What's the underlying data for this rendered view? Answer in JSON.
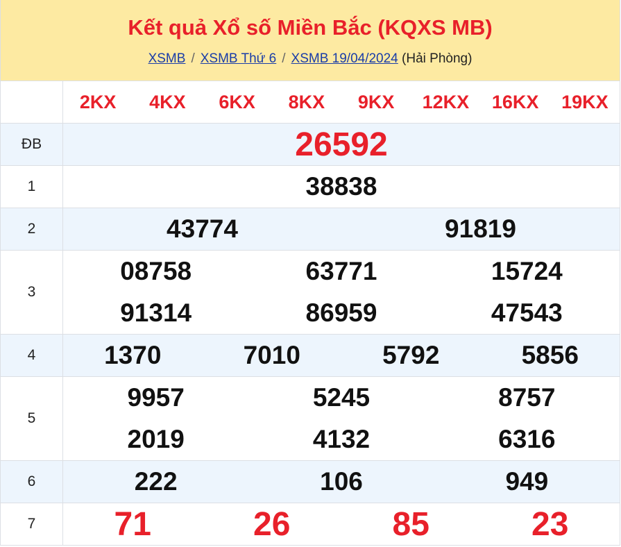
{
  "header": {
    "title": "Kết quả Xổ số Miền Bắc (KQXS MB)",
    "breadcrumb": [
      {
        "label": "XSMB"
      },
      {
        "label": "XSMB Thứ 6"
      },
      {
        "label": "XSMB 19/04/2024"
      }
    ],
    "province": "(Hải Phòng)",
    "separator": "/"
  },
  "codes": [
    "2KX",
    "4KX",
    "6KX",
    "8KX",
    "9KX",
    "12KX",
    "16KX",
    "19KX"
  ],
  "prizes": [
    {
      "label": "ĐB",
      "numbers": [
        "26592"
      ]
    },
    {
      "label": "1",
      "numbers": [
        "38838"
      ]
    },
    {
      "label": "2",
      "numbers": [
        "43774",
        "91819"
      ]
    },
    {
      "label": "3",
      "numbers": [
        "08758",
        "63771",
        "15724",
        "91314",
        "86959",
        "47543"
      ]
    },
    {
      "label": "4",
      "numbers": [
        "1370",
        "7010",
        "5792",
        "5856"
      ]
    },
    {
      "label": "5",
      "numbers": [
        "9957",
        "5245",
        "8757",
        "2019",
        "4132",
        "6316"
      ]
    },
    {
      "label": "6",
      "numbers": [
        "222",
        "106",
        "949"
      ]
    },
    {
      "label": "7",
      "numbers": [
        "71",
        "26",
        "85",
        "23"
      ]
    }
  ],
  "colors": {
    "accent": "#e8202a",
    "header_bg": "#fdeaa2",
    "row_alt": "#edf5fd",
    "link": "#1a3da8"
  }
}
